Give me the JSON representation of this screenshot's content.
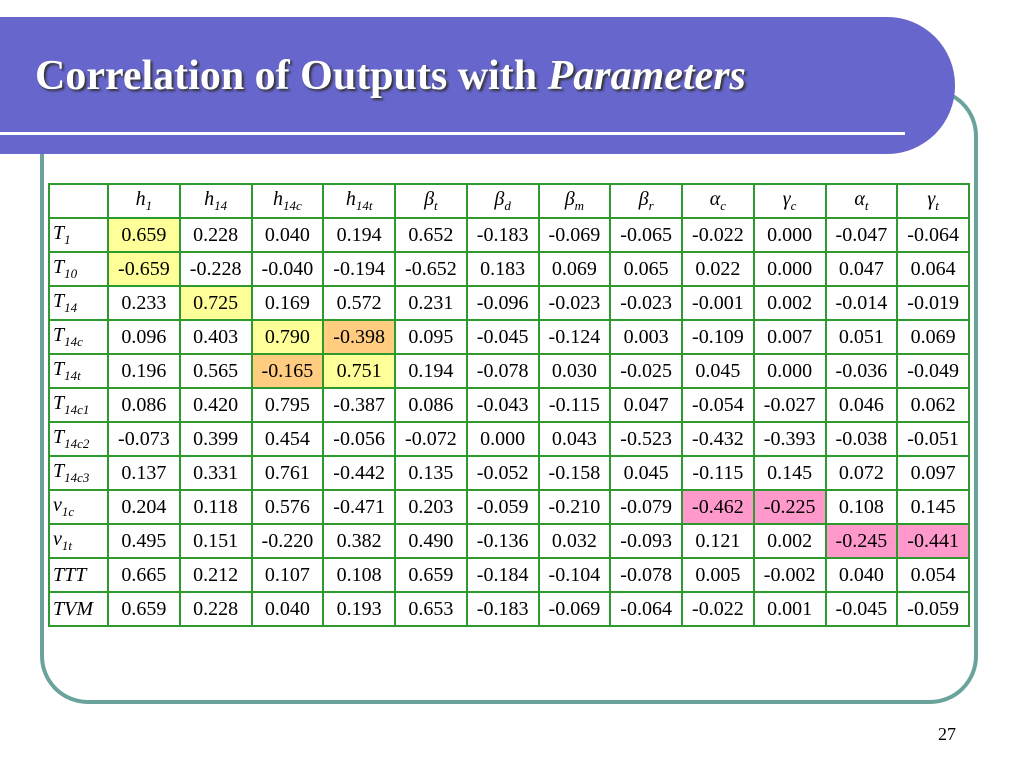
{
  "header": {
    "title": {
      "text": "Correlation of Outputs with ",
      "emphasis": "Parameters"
    }
  },
  "table": {
    "columns": [
      {
        "base": "h",
        "sub": "1"
      },
      {
        "base": "h",
        "sub": "14"
      },
      {
        "base": "h",
        "sub": "14c"
      },
      {
        "base": "h",
        "sub": "14t"
      },
      {
        "base": "β",
        "sub": "t"
      },
      {
        "base": "β",
        "sub": "d"
      },
      {
        "base": "β",
        "sub": "m"
      },
      {
        "base": "β",
        "sub": "r"
      },
      {
        "base": "α",
        "sub": "c"
      },
      {
        "base": "γ",
        "sub": "c"
      },
      {
        "base": "α",
        "sub": "t"
      },
      {
        "base": "γ",
        "sub": "t"
      }
    ],
    "rows": [
      {
        "label": {
          "base": "T",
          "sub": "1"
        },
        "values": [
          "0.659",
          "0.228",
          "0.040",
          "0.194",
          "0.652",
          "-0.183",
          "-0.069",
          "-0.065",
          "-0.022",
          "0.000",
          "-0.047",
          "-0.064"
        ]
      },
      {
        "label": {
          "base": "T",
          "sub": "10"
        },
        "values": [
          "-0.659",
          "-0.228",
          "-0.040",
          "-0.194",
          "-0.652",
          "0.183",
          "0.069",
          "0.065",
          "0.022",
          "0.000",
          "0.047",
          "0.064"
        ]
      },
      {
        "label": {
          "base": "T",
          "sub": "14"
        },
        "values": [
          "0.233",
          "0.725",
          "0.169",
          "0.572",
          "0.231",
          "-0.096",
          "-0.023",
          "-0.023",
          "-0.001",
          "0.002",
          "-0.014",
          "-0.019"
        ]
      },
      {
        "label": {
          "base": "T",
          "sub": "14c"
        },
        "values": [
          "0.096",
          "0.403",
          "0.790",
          "-0.398",
          "0.095",
          "-0.045",
          "-0.124",
          "0.003",
          "-0.109",
          "0.007",
          "0.051",
          "0.069"
        ]
      },
      {
        "label": {
          "base": "T",
          "sub": "14t"
        },
        "values": [
          "0.196",
          "0.565",
          "-0.165",
          "0.751",
          "0.194",
          "-0.078",
          "0.030",
          "-0.025",
          "0.045",
          "0.000",
          "-0.036",
          "-0.049"
        ]
      },
      {
        "label": {
          "base": "T",
          "sub": "14c1"
        },
        "values": [
          "0.086",
          "0.420",
          "0.795",
          "-0.387",
          "0.086",
          "-0.043",
          "-0.115",
          "0.047",
          "-0.054",
          "-0.027",
          "0.046",
          "0.062"
        ]
      },
      {
        "label": {
          "base": "T",
          "sub": "14c2"
        },
        "values": [
          "-0.073",
          "0.399",
          "0.454",
          "-0.056",
          "-0.072",
          "0.000",
          "0.043",
          "-0.523",
          "-0.432",
          "-0.393",
          "-0.038",
          "-0.051"
        ]
      },
      {
        "label": {
          "base": "T",
          "sub": "14c3"
        },
        "values": [
          "0.137",
          "0.331",
          "0.761",
          "-0.442",
          "0.135",
          "-0.052",
          "-0.158",
          "0.045",
          "-0.115",
          "0.145",
          "0.072",
          "0.097"
        ]
      },
      {
        "label": {
          "base": "v",
          "sub": "1c"
        },
        "values": [
          "0.204",
          "0.118",
          "0.576",
          "-0.471",
          "0.203",
          "-0.059",
          "-0.210",
          "-0.079",
          "-0.462",
          "-0.225",
          "0.108",
          "0.145"
        ]
      },
      {
        "label": {
          "base": "v",
          "sub": "1t"
        },
        "values": [
          "0.495",
          "0.151",
          "-0.220",
          "0.382",
          "0.490",
          "-0.136",
          "0.032",
          "-0.093",
          "0.121",
          "0.002",
          "-0.245",
          "-0.441"
        ]
      },
      {
        "label": {
          "base": "TTT"
        },
        "values": [
          "0.665",
          "0.212",
          "0.107",
          "0.108",
          "0.659",
          "-0.184",
          "-0.104",
          "-0.078",
          "0.005",
          "-0.002",
          "0.040",
          "0.054"
        ]
      },
      {
        "label": {
          "base": "TVM"
        },
        "values": [
          "0.659",
          "0.228",
          "0.040",
          "0.193",
          "0.653",
          "-0.183",
          "-0.069",
          "-0.064",
          "-0.022",
          "0.001",
          "-0.045",
          "-0.059"
        ]
      }
    ],
    "highlights": [
      {
        "row": 0,
        "col": 0,
        "color": "#ffff99"
      },
      {
        "row": 1,
        "col": 0,
        "color": "#ffff99"
      },
      {
        "row": 2,
        "col": 1,
        "color": "#ffff99"
      },
      {
        "row": 3,
        "col": 2,
        "color": "#ffff99"
      },
      {
        "row": 3,
        "col": 3,
        "color": "#ffcc80"
      },
      {
        "row": 4,
        "col": 2,
        "color": "#ffcc80"
      },
      {
        "row": 4,
        "col": 3,
        "color": "#ffff99"
      },
      {
        "row": 8,
        "col": 8,
        "color": "#ff99cc"
      },
      {
        "row": 8,
        "col": 9,
        "color": "#ff99cc"
      },
      {
        "row": 9,
        "col": 10,
        "color": "#ff99cc"
      },
      {
        "row": 9,
        "col": 11,
        "color": "#ff99cc"
      }
    ]
  },
  "footer": {
    "page_number": "27"
  }
}
